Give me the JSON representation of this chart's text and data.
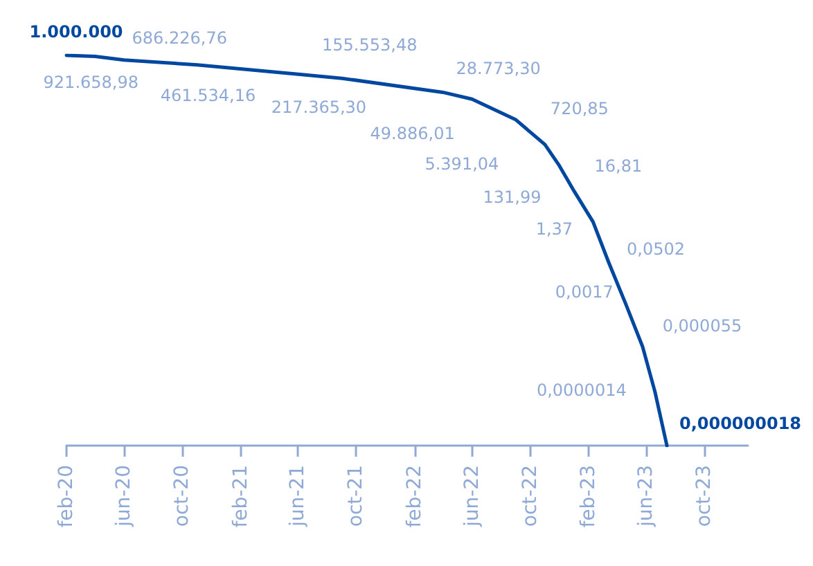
{
  "chart_data": {
    "type": "line",
    "log": true,
    "x": [
      "2020-02",
      "2020-04",
      "2020-06",
      "2020-11",
      "2021-06",
      "2021-09",
      "2022-04",
      "2022-06",
      "2022-09",
      "2022-11",
      "2022-12",
      "2023-01",
      "2023-02-10",
      "2023-03-15",
      "2023-04-20",
      "2023-05-25",
      "2023-06-20",
      "2023-07-15"
    ],
    "xlim": [
      "2020-02",
      "2024-01"
    ],
    "xticks": [
      {
        "value": "2020-02",
        "label": "feb-20"
      },
      {
        "value": "2020-06",
        "label": "jun-20"
      },
      {
        "value": "2020-10",
        "label": "oct-20"
      },
      {
        "value": "2021-02",
        "label": "feb-21"
      },
      {
        "value": "2021-06",
        "label": "jun-21"
      },
      {
        "value": "2021-10",
        "label": "oct-21"
      },
      {
        "value": "2022-02",
        "label": "feb-22"
      },
      {
        "value": "2022-06",
        "label": "jun-22"
      },
      {
        "value": "2022-10",
        "label": "oct-22"
      },
      {
        "value": "2023-02",
        "label": "feb-23"
      },
      {
        "value": "2023-06",
        "label": "jun-23"
      },
      {
        "value": "2023-10",
        "label": "oct-23"
      }
    ],
    "tick_labels": "x",
    "grid": false,
    "series": [
      {
        "color": "#0047a0",
        "values": [
          1000000,
          921658.98,
          686226.76,
          461534.16,
          217365.3,
          155553.48,
          49886.01,
          28773.3,
          5391.04,
          720.85,
          131.99,
          16.81,
          1.37,
          0.0502,
          0.0017,
          5.5e-05,
          1.4e-06,
          1.8e-08
        ],
        "value_labels": [
          "1.000.000",
          "921.658,98",
          "686.226,76",
          "461.534,16",
          "217.365,30",
          "155.553,48",
          "49.886,01",
          "28.773,30",
          "5.391,04",
          "720,85",
          "131,99",
          "16,81",
          "1,37",
          "0,0502",
          "0,0017",
          "0,000055",
          "0,0000014",
          "0,000000018"
        ]
      }
    ]
  }
}
